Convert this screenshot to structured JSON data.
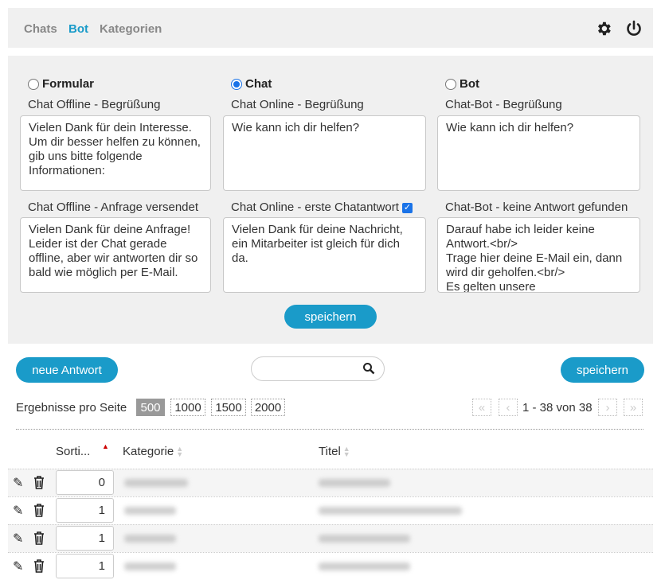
{
  "nav": {
    "items": [
      {
        "label": "Chats",
        "active": false
      },
      {
        "label": "Bot",
        "active": true
      },
      {
        "label": "Kategorien",
        "active": false
      }
    ],
    "icons": [
      "gear-icon",
      "power-icon"
    ]
  },
  "mode": {
    "options": [
      {
        "label": "Formular",
        "selected": false
      },
      {
        "label": "Chat",
        "selected": true
      },
      {
        "label": "Bot",
        "selected": false
      }
    ]
  },
  "fields": {
    "offline_greeting": {
      "label": "Chat Offline - Begrüßung",
      "value": "Vielen Dank für dein Interesse. Um dir besser helfen zu können, gib uns bitte folgende Informationen:"
    },
    "online_greeting": {
      "label": "Chat Online - Begrüßung",
      "value": "Wie kann ich dir helfen?"
    },
    "bot_greeting": {
      "label": "Chat-Bot - Begrüßung",
      "value": "Wie kann ich dir helfen?"
    },
    "offline_sent": {
      "label": "Chat Offline - Anfrage versendet",
      "value": "Vielen Dank für deine Anfrage! Leider ist der Chat gerade offline, aber wir antworten dir so bald wie möglich per E-Mail."
    },
    "online_first": {
      "label": "Chat Online - erste Chatantwort",
      "checked": true,
      "value": "Vielen Dank für deine Nachricht, ein Mitarbeiter ist gleich für dich da."
    },
    "bot_no_answer": {
      "label": "Chat-Bot - keine Antwort gefunden",
      "value": "Darauf habe ich leider keine Antwort.<br/>\nTrage hier deine E-Mail ein, dann wird dir geholfen.<br/>\nEs gelten unsere"
    }
  },
  "panel_save": "speichern",
  "toolbar": {
    "new_answer": "neue Antwort",
    "search_placeholder": "",
    "save": "speichern"
  },
  "paging": {
    "per_page_label": "Ergebnisse pro Seite",
    "sizes": [
      "500",
      "1000",
      "1500",
      "2000"
    ],
    "selected": "500",
    "range": "1 - 38 von 38"
  },
  "table": {
    "columns": [
      "Sorti...",
      "Kategorie",
      "Titel"
    ],
    "sorted_column": "Sorti...",
    "rows": [
      {
        "order": "0"
      },
      {
        "order": "1"
      },
      {
        "order": "1"
      },
      {
        "order": "1"
      }
    ]
  },
  "colors": {
    "accent": "#1a9bc9",
    "panel": "#f0f0f0"
  }
}
